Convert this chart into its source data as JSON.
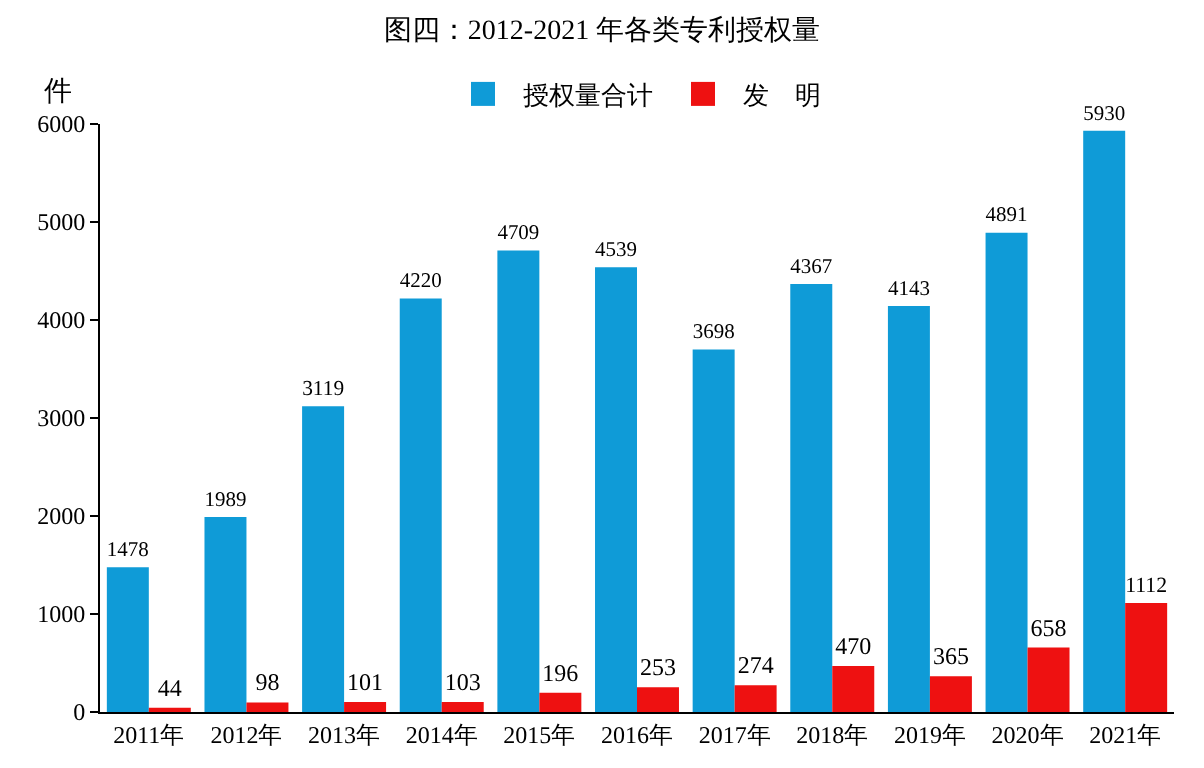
{
  "chart_data": {
    "type": "bar",
    "title": "图四：2012-2021 年各类专利授权量",
    "ylabel": "件",
    "categories": [
      "2011年",
      "2012年",
      "2013年",
      "2014年",
      "2015年",
      "2016年",
      "2017年",
      "2018年",
      "2019年",
      "2020年",
      "2021年"
    ],
    "series": [
      {
        "name": "授权量合计",
        "color": "#0f9bd7",
        "values": [
          1478,
          1989,
          3119,
          4220,
          4709,
          4539,
          3698,
          4367,
          4143,
          4891,
          5930
        ]
      },
      {
        "name": "发　明",
        "color": "#ee1111",
        "values": [
          44,
          98,
          101,
          103,
          196,
          253,
          274,
          470,
          365,
          658,
          1112
        ]
      }
    ],
    "ylim": [
      0,
      6000
    ],
    "yticks": [
      0,
      1000,
      2000,
      3000,
      4000,
      5000,
      6000
    ],
    "grid": false,
    "legend": "top",
    "data_labels": true
  }
}
